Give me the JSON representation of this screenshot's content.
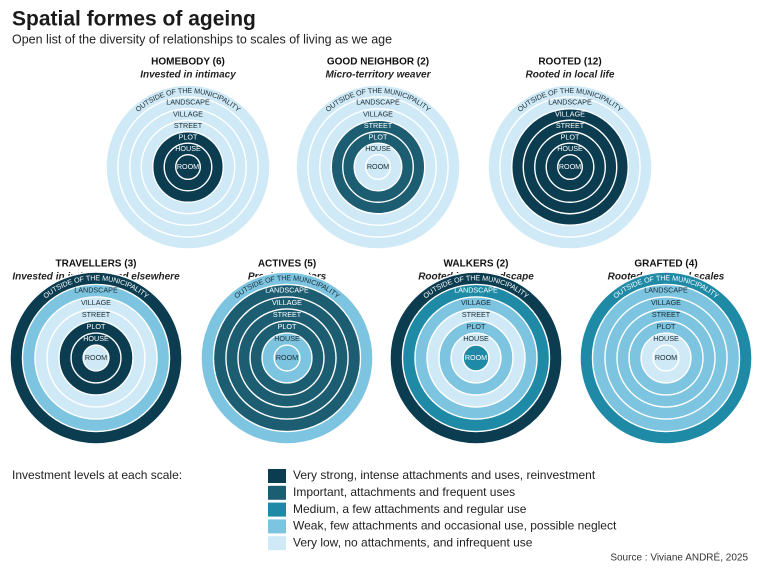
{
  "title": "Spatial formes of ageing",
  "subtitle": "Open list of the diversity of relationships to scales of living as we age",
  "ring_labels": [
    "ROOM",
    "HOUSE",
    "PLOT",
    "STREET",
    "VILLAGE",
    "LANDSCAPE",
    "OUTSIDE OF THE MUNICIPALITY"
  ],
  "profiles": [
    {
      "name": "HOMEBODY (6)",
      "description": "Invested in intimacy",
      "ring_colors": [
        "#0b3c50",
        "#0b3c50",
        "#0b3c50",
        "#cfeaf6",
        "#cfeaf6",
        "#cfeaf6",
        "#cfeaf6"
      ]
    },
    {
      "name": "GOOD NEIGHBOR (2)",
      "description": "Micro-territory weaver",
      "ring_colors": [
        "#cfeaf6",
        "#cfeaf6",
        "#1d5d71",
        "#1d5d71",
        "#cfeaf6",
        "#cfeaf6",
        "#cfeaf6"
      ]
    },
    {
      "name": "ROOTED (12)",
      "description": "Rooted in local life",
      "ring_colors": [
        "#0b3c50",
        "#0b3c50",
        "#0b3c50",
        "#0b3c50",
        "#0b3c50",
        "#cfeaf6",
        "#cfeaf6"
      ]
    },
    {
      "name": "TRAVELLERS (3)",
      "description": "Invested in intimacy and elsewhere",
      "ring_colors": [
        "#cfeaf6",
        "#0b3c50",
        "#0b3c50",
        "#cfeaf6",
        "#cfeaf6",
        "#7cc4e0",
        "#0b3c50"
      ]
    },
    {
      "name": "ACTIVES (5)",
      "description": "Proximity actors",
      "ring_colors": [
        "#7cc4e0",
        "#7cc4e0",
        "#1d5d71",
        "#1d5d71",
        "#1d5d71",
        "#1d5d71",
        "#7cc4e0"
      ]
    },
    {
      "name": "WALKERS (2)",
      "description": "Rooted in the landscape",
      "ring_colors": [
        "#1f8aa6",
        "#cfeaf6",
        "#7cc4e0",
        "#cfeaf6",
        "#7cc4e0",
        "#1f8aa6",
        "#0b3c50"
      ]
    },
    {
      "name": "GRAFTED (4)",
      "description": "Rooted at several scales",
      "ring_colors": [
        "#cfeaf6",
        "#cfeaf6",
        "#7cc4e0",
        "#7cc4e0",
        "#7cc4e0",
        "#7cc4e0",
        "#1f8aa6"
      ]
    }
  ],
  "legend": {
    "title": "Investment levels at each scale:",
    "items": [
      {
        "label": "Very strong, intense attachments and uses, reinvestment",
        "color": "#0b3c50"
      },
      {
        "label": "Important, attachments and frequent uses",
        "color": "#1d5d71"
      },
      {
        "label": "Medium, a few attachments and regular use",
        "color": "#1f8aa6"
      },
      {
        "label": "Weak, few attachments and occasional use, possible neglect",
        "color": "#7cc4e0"
      },
      {
        "label": "Very low, no attachments, and infrequent use",
        "color": "#cfeaf6"
      }
    ]
  },
  "source": "Source : Viviane ANDRÉ, 2025"
}
